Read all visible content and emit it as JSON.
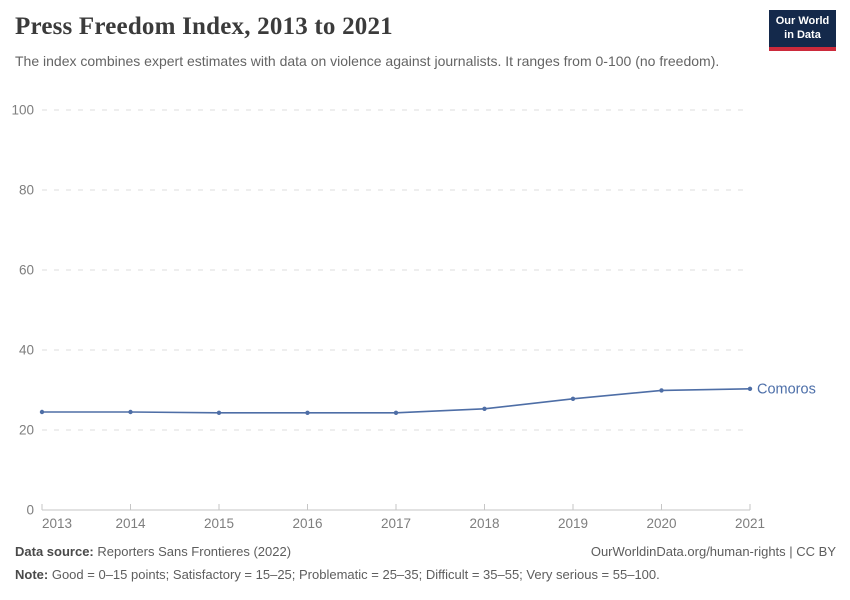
{
  "header": {
    "title": "Press Freedom Index, 2013 to 2021",
    "subtitle": "The index combines expert estimates with data on violence against journalists. It ranges from 0-100 (no freedom).",
    "logo": {
      "line1": "Our World",
      "line2": "in Data",
      "bg_color": "#14294b",
      "accent_color": "#cc2a3b"
    }
  },
  "chart_data": {
    "type": "line",
    "title": "Press Freedom Index, 2013 to 2021",
    "x": [
      2013,
      2014,
      2015,
      2016,
      2017,
      2018,
      2019,
      2020,
      2021
    ],
    "series": [
      {
        "name": "Comoros",
        "values": [
          24.5,
          24.5,
          24.3,
          24.3,
          24.3,
          25.3,
          27.8,
          29.9,
          30.3
        ],
        "color": "#4e6ea6",
        "label_color": "#4d6fa9"
      }
    ],
    "xlabel": "",
    "ylabel": "",
    "ylim": [
      0,
      100
    ],
    "yticks": [
      0,
      20,
      40,
      60,
      80,
      100
    ],
    "grid": true,
    "grid_style": "dashed",
    "legend_position": "end-of-line",
    "axis_text_color": "#7e7e7e",
    "grid_color": "#dcdcdc",
    "axis_line_color": "#c6c6c6"
  },
  "footer": {
    "datasource_label": "Data source:",
    "datasource_text": "Reporters Sans Frontieres (2022)",
    "link_text": "OurWorldinData.org/human-rights | CC BY",
    "note_label": "Note:",
    "note_text": "Good = 0–15 points; Satisfactory = 15–25; Problematic = 25–35; Difficult = 35–55; Very serious = 55–100."
  }
}
